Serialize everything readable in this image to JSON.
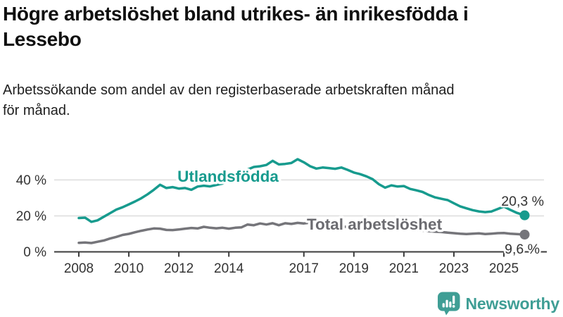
{
  "header": {
    "title": "Högre arbetslöshet bland utrikes- än inrikesfödda i\nLessebo",
    "subtitle": "Arbetssökande som andel av den registerbaserade arbetskraften månad\nför månad."
  },
  "chart": {
    "y_axis": {
      "ticks": [
        {
          "label": "0 %",
          "value": 0
        },
        {
          "label": "20 %",
          "value": 20
        },
        {
          "label": "40 %",
          "value": 40
        }
      ]
    },
    "x_axis": {
      "ticks": [
        {
          "label": "2008",
          "value": 2008
        },
        {
          "label": "2010",
          "value": 2010
        },
        {
          "label": "2012",
          "value": 2012
        },
        {
          "label": "2014",
          "value": 2014
        },
        {
          "label": "2017",
          "value": 2017
        },
        {
          "label": "2019",
          "value": 2019
        },
        {
          "label": "2021",
          "value": 2021
        },
        {
          "label": "2023",
          "value": 2023
        },
        {
          "label": "2025",
          "value": 2025
        }
      ]
    },
    "colors": {
      "foreign_born": "#179b8e",
      "total": "#75757a",
      "grid": "#dcdcdc",
      "axis": "#3c3c3c",
      "tick_text": "#333333",
      "value_text": "#333333"
    }
  },
  "chart_data": {
    "type": "line",
    "title": "Högre arbetslöshet bland utrikes- än inrikesfödda i Lessebo",
    "subtitle": "Arbetssökande som andel av den registerbaserade arbetskraften månad för månad.",
    "xlabel": "",
    "ylabel": "",
    "ylim": [
      0,
      55
    ],
    "xlim": [
      2007.6,
      2026.2
    ],
    "grid": true,
    "legend_position": "inline",
    "x": [
      2008,
      2008.25,
      2008.5,
      2008.75,
      2009,
      2009.25,
      2009.5,
      2009.75,
      2010,
      2010.25,
      2010.5,
      2010.75,
      2011,
      2011.25,
      2011.5,
      2011.75,
      2012,
      2012.25,
      2012.5,
      2012.75,
      2013,
      2013.25,
      2013.5,
      2013.75,
      2014,
      2014.25,
      2014.5,
      2014.75,
      2015,
      2015.25,
      2015.5,
      2015.75,
      2016,
      2016.25,
      2016.5,
      2016.75,
      2017,
      2017.25,
      2017.5,
      2017.75,
      2018,
      2018.25,
      2018.5,
      2018.75,
      2019,
      2019.25,
      2019.5,
      2019.75,
      2020,
      2020.25,
      2020.5,
      2020.75,
      2021,
      2021.25,
      2021.5,
      2021.75,
      2022,
      2022.25,
      2022.5,
      2022.75,
      2023,
      2023.25,
      2023.5,
      2023.75,
      2024,
      2024.25,
      2024.5,
      2024.75,
      2025,
      2025.25,
      2025.5,
      2025.83
    ],
    "series": [
      {
        "name": "Utlandsfödda",
        "color": "#179b8e",
        "end_label": "20,3 %",
        "end_value": 20.3,
        "values": [
          18.8,
          19.0,
          16.7,
          17.5,
          19.5,
          21.5,
          23.5,
          24.8,
          26.4,
          28.0,
          29.8,
          32.0,
          34.5,
          37.3,
          35.5,
          36.0,
          35.2,
          35.5,
          34.5,
          36.3,
          36.8,
          36.4,
          37.2,
          38.0,
          39.3,
          40.8,
          43.0,
          45.8,
          47.2,
          47.6,
          48.3,
          50.6,
          48.6,
          48.9,
          49.4,
          51.5,
          49.8,
          47.6,
          46.3,
          46.9,
          46.6,
          46.2,
          46.9,
          45.6,
          44.1,
          43.2,
          42.0,
          40.4,
          37.6,
          35.7,
          37.0,
          36.3,
          36.6,
          35.0,
          34.2,
          33.3,
          31.6,
          30.3,
          29.5,
          28.8,
          27.0,
          25.3,
          24.2,
          23.2,
          22.5,
          22.1,
          22.4,
          23.8,
          25.2,
          23.4,
          21.8,
          20.3
        ]
      },
      {
        "name": "Total arbetslöshet",
        "color": "#75757a",
        "end_label": "9,6 %",
        "end_value": 9.6,
        "values": [
          5.0,
          5.2,
          4.9,
          5.6,
          6.3,
          7.4,
          8.3,
          9.4,
          10.0,
          10.9,
          11.7,
          12.4,
          13.0,
          12.9,
          12.2,
          12.1,
          12.4,
          12.9,
          13.3,
          13.0,
          13.9,
          13.4,
          13.1,
          13.4,
          12.9,
          13.4,
          13.6,
          15.2,
          14.8,
          15.8,
          15.2,
          15.9,
          14.8,
          15.9,
          15.5,
          16.1,
          15.8,
          16.2,
          15.6,
          15.2,
          14.8,
          14.4,
          14.1,
          13.8,
          13.4,
          13.1,
          12.9,
          12.8,
          12.9,
          13.6,
          13.8,
          13.4,
          13.0,
          12.5,
          12.1,
          11.8,
          11.5,
          11.2,
          11.0,
          10.7,
          10.4,
          10.1,
          9.9,
          10.1,
          10.3,
          9.9,
          10.1,
          10.4,
          10.5,
          10.1,
          9.9,
          9.6
        ]
      }
    ]
  },
  "footer": {
    "brand": "Newsworthy",
    "logo_color": "#3f9e95"
  }
}
